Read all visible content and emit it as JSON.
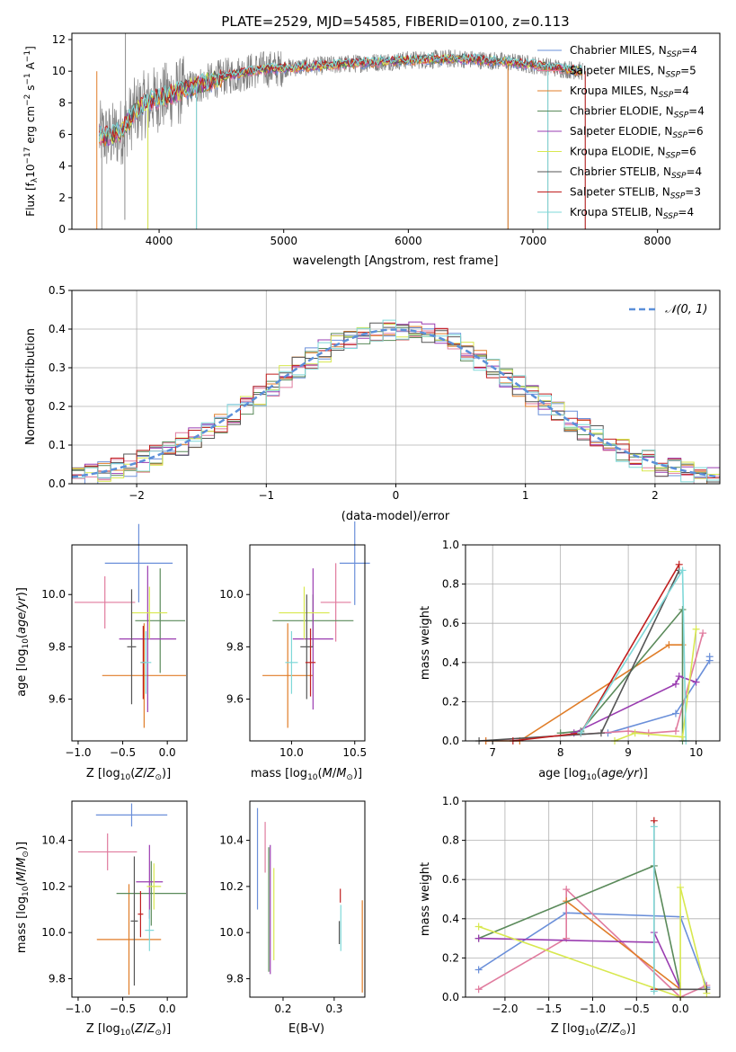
{
  "figure": {
    "title": "PLATE=2529, MJD=54585, FIBERID=0100, z=0.113"
  },
  "colors": {
    "Chabrier MILES": "#6a8fd9",
    "Salpeter MILES": "#e07b9e",
    "Kroupa MILES": "#e07d28",
    "Chabrier ELODIE": "#5a8a5a",
    "Salpeter ELODIE": "#9a3cb0",
    "Kroupa ELODIE": "#d8e84f",
    "Chabrier STELIB": "#555555",
    "Salpeter STELIB": "#c01f1f",
    "Kroupa STELIB": "#7fd8d8",
    "data": "#808080",
    "gaussian": "#5b8fd9"
  },
  "chart_data": [
    {
      "id": "spectrum",
      "type": "line",
      "title": "PLATE=2529, MJD=54585, FIBERID=0100, z=0.113",
      "xlabel": "wavelength [Angstrom, rest frame]",
      "ylabel": "Flux [f_λ10^-17 erg cm^-2 s^-1 A^-1]",
      "xlim": [
        3300,
        8500
      ],
      "ylim": [
        0,
        12.4
      ],
      "xticks": [
        4000,
        5000,
        6000,
        7000,
        8000
      ],
      "yticks": [
        0,
        2,
        4,
        6,
        8,
        10,
        12
      ],
      "legend_position": "right",
      "legend": [
        "Chabrier MILES, N_SSP=4",
        "Salpeter MILES, N_SSP=5",
        "Kroupa MILES, N_SSP=4",
        "Chabrier ELODIE, N_SSP=4",
        "Salpeter ELODIE, N_SSP=6",
        "Kroupa ELODIE, N_SSP=6",
        "Chabrier STELIB, N_SSP=4",
        "Salpeter STELIB, N_SSP=3",
        "Kroupa STELIB, N_SSP=4"
      ],
      "continuum": {
        "x": [
          3520,
          3600,
          3700,
          3800,
          3900,
          4000,
          4200,
          4500,
          4800,
          5200,
          5600,
          6000,
          6400,
          6800,
          7200,
          7400
        ],
        "y": [
          6.0,
          5.8,
          6.2,
          7.4,
          8.0,
          8.3,
          8.8,
          9.6,
          10.1,
          10.3,
          10.5,
          10.7,
          10.8,
          10.6,
          10.2,
          10.0
        ]
      },
      "spikes": [
        {
          "x": 3540,
          "y": 0.0
        },
        {
          "x": 3725,
          "y": 0.6
        },
        {
          "x": 3730,
          "y": 12.4
        },
        {
          "x": 3910,
          "y": 0.0
        },
        {
          "x": 4300,
          "y": 0.0
        },
        {
          "x": 6800,
          "y": 0.0
        },
        {
          "x": 7120,
          "y": 0.0
        },
        {
          "x": 7420,
          "y": 0.0
        }
      ]
    },
    {
      "id": "residuals",
      "type": "line",
      "xlabel": "(data-model)/error",
      "ylabel": "Normed distribution",
      "xlim": [
        -2.5,
        2.5
      ],
      "ylim": [
        0,
        0.5
      ],
      "xticks": [
        -2,
        -1,
        0,
        1,
        2
      ],
      "yticks": [
        0.0,
        0.1,
        0.2,
        0.3,
        0.4,
        0.5
      ],
      "legend": [
        "𝒩(0, 1)"
      ],
      "legend_position": "top-right",
      "grid": true
    },
    {
      "id": "age_vs_z",
      "type": "scatter",
      "xlabel": "Z [log10(Z/Z⊙)]",
      "ylabel": "age  [log10(age/yr)]",
      "xlim": [
        -1.07,
        0.22
      ],
      "ylim": [
        9.44,
        10.19
      ],
      "xticks": [
        -1.0,
        -0.5,
        0.0
      ],
      "xtick_labels": [
        "−1.0",
        "−0.5",
        "0.0"
      ],
      "yticks": [
        9.6,
        9.8,
        10.0
      ],
      "points": [
        {
          "model": "Chabrier MILES",
          "x": -0.32,
          "xerr": 0.38,
          "y": 10.12,
          "yerr": 0.15
        },
        {
          "model": "Salpeter MILES",
          "x": -0.7,
          "xerr": 0.34,
          "y": 9.97,
          "yerr": 0.1
        },
        {
          "model": "Kroupa MILES",
          "x": -0.26,
          "xerr": 0.47,
          "y": 9.69,
          "yerr": 0.2
        },
        {
          "model": "Chabrier ELODIE",
          "x": -0.08,
          "xerr": 0.28,
          "y": 9.9,
          "yerr": 0.2
        },
        {
          "model": "Salpeter ELODIE",
          "x": -0.22,
          "xerr": 0.32,
          "y": 9.83,
          "yerr": 0.28
        },
        {
          "model": "Kroupa ELODIE",
          "x": -0.2,
          "xerr": 0.2,
          "y": 9.93,
          "yerr": 0.1
        },
        {
          "model": "Chabrier STELIB",
          "x": -0.4,
          "xerr": 0.05,
          "y": 9.8,
          "yerr": 0.22
        },
        {
          "model": "Salpeter STELIB",
          "x": -0.27,
          "xerr": 0.03,
          "y": 9.74,
          "yerr": 0.14
        },
        {
          "model": "Kroupa STELIB",
          "x": -0.24,
          "xerr": 0.06,
          "y": 9.74,
          "yerr": 0.12
        }
      ]
    },
    {
      "id": "age_vs_mass",
      "type": "scatter",
      "xlabel": "mass [log10(M/M⊙)]",
      "xlim": [
        9.67,
        10.58
      ],
      "ylim": [
        9.44,
        10.19
      ],
      "xticks": [
        10.0,
        10.5
      ],
      "xtick_labels": [
        "10.0",
        "10.5"
      ],
      "yticks": [
        9.6,
        9.8,
        10.0
      ],
      "points": [
        {
          "model": "Chabrier MILES",
          "x": 10.5,
          "xerr": 0.12,
          "y": 10.12,
          "yerr": 0.16
        },
        {
          "model": "Salpeter MILES",
          "x": 10.35,
          "xerr": 0.12,
          "y": 9.97,
          "yerr": 0.15
        },
        {
          "model": "Kroupa MILES",
          "x": 9.97,
          "xerr": 0.2,
          "y": 9.69,
          "yerr": 0.2
        },
        {
          "model": "Chabrier ELODIE",
          "x": 10.17,
          "xerr": 0.32,
          "y": 9.9,
          "yerr": 0.1
        },
        {
          "model": "Salpeter ELODIE",
          "x": 10.17,
          "xerr": 0.16,
          "y": 9.83,
          "yerr": 0.27
        },
        {
          "model": "Kroupa ELODIE",
          "x": 10.1,
          "xerr": 0.2,
          "y": 9.93,
          "yerr": 0.1
        },
        {
          "model": "Chabrier STELIB",
          "x": 10.12,
          "xerr": 0.05,
          "y": 9.8,
          "yerr": 0.2
        },
        {
          "model": "Salpeter STELIB",
          "x": 10.15,
          "xerr": 0.04,
          "y": 9.74,
          "yerr": 0.13
        },
        {
          "model": "Kroupa STELIB",
          "x": 10.0,
          "xerr": 0.05,
          "y": 9.74,
          "yerr": 0.12
        }
      ]
    },
    {
      "id": "mass_weight_vs_age",
      "type": "line",
      "xlabel": "age  [log10(age/yr)]",
      "ylabel": "mass weight",
      "xlim": [
        6.6,
        10.35
      ],
      "ylim": [
        0,
        1.0
      ],
      "xticks": [
        7,
        8,
        9,
        10
      ],
      "yticks": [
        0.0,
        0.2,
        0.4,
        0.6,
        0.8,
        1.0
      ],
      "grid": true,
      "series": [
        {
          "model": "Chabrier MILES",
          "x": [
            8.7,
            9.7,
            10.2,
            10.2
          ],
          "y": [
            0.04,
            0.14,
            0.41,
            0.43
          ]
        },
        {
          "model": "Salpeter MILES",
          "x": [
            6.9,
            9.0,
            9.3,
            9.7,
            10.1
          ],
          "y": [
            0.0,
            0.05,
            0.04,
            0.05,
            0.55
          ]
        },
        {
          "model": "Kroupa MILES",
          "x": [
            6.9,
            7.4,
            9.6,
            9.8
          ],
          "y": [
            0.0,
            0.0,
            0.49,
            0.49
          ]
        },
        {
          "model": "Chabrier ELODIE",
          "x": [
            8.0,
            8.3,
            9.8,
            9.8
          ],
          "y": [
            0.04,
            0.05,
            0.67,
            0.0
          ]
        },
        {
          "model": "Salpeter ELODIE",
          "x": [
            8.2,
            9.7,
            9.75,
            10.0
          ],
          "y": [
            0.04,
            0.29,
            0.33,
            0.3
          ]
        },
        {
          "model": "Kroupa ELODIE",
          "x": [
            8.8,
            9.1,
            9.8,
            10.0
          ],
          "y": [
            0.0,
            0.04,
            0.02,
            0.57
          ]
        },
        {
          "model": "Chabrier STELIB",
          "x": [
            6.8,
            8.6,
            9.75
          ],
          "y": [
            0.0,
            0.04,
            0.87
          ]
        },
        {
          "model": "Salpeter STELIB",
          "x": [
            7.3,
            8.3,
            9.75
          ],
          "y": [
            0.0,
            0.04,
            0.9
          ]
        },
        {
          "model": "Kroupa STELIB",
          "x": [
            8.3,
            9.8,
            9.85
          ],
          "y": [
            0.04,
            0.87,
            0.0
          ]
        }
      ]
    },
    {
      "id": "mass_vs_z",
      "type": "scatter",
      "xlabel": "Z [log10(Z/Z⊙)]",
      "ylabel": "mass [log10(M/M⊙)]",
      "xlim": [
        -1.07,
        0.22
      ],
      "ylim": [
        9.72,
        10.57
      ],
      "xticks": [
        -1.0,
        -0.5,
        0.0
      ],
      "xtick_labels": [
        "−1.0",
        "−0.5",
        "0.0"
      ],
      "yticks": [
        9.8,
        10.0,
        10.2,
        10.4
      ],
      "points": [
        {
          "model": "Chabrier MILES",
          "x": -0.4,
          "xerr": 0.4,
          "y": 10.51,
          "yerr": 0.05
        },
        {
          "model": "Salpeter MILES",
          "x": -0.67,
          "xerr": 0.33,
          "y": 10.35,
          "yerr": 0.08
        },
        {
          "model": "Kroupa MILES",
          "x": -0.43,
          "xerr": 0.36,
          "y": 9.97,
          "yerr": 0.24
        },
        {
          "model": "Chabrier ELODIE",
          "x": -0.18,
          "xerr": 0.39,
          "y": 10.17,
          "yerr": 0.14
        },
        {
          "model": "Salpeter ELODIE",
          "x": -0.2,
          "xerr": 0.15,
          "y": 10.22,
          "yerr": 0.16
        },
        {
          "model": "Kroupa ELODIE",
          "x": -0.15,
          "xerr": 0.08,
          "y": 10.2,
          "yerr": 0.1
        },
        {
          "model": "Chabrier STELIB",
          "x": -0.37,
          "xerr": 0.04,
          "y": 10.05,
          "yerr": 0.28
        },
        {
          "model": "Salpeter STELIB",
          "x": -0.3,
          "xerr": 0.03,
          "y": 10.08,
          "yerr": 0.1
        },
        {
          "model": "Kroupa STELIB",
          "x": -0.2,
          "xerr": 0.05,
          "y": 10.01,
          "yerr": 0.09
        }
      ]
    },
    {
      "id": "mass_vs_ebv",
      "type": "scatter",
      "xlabel": "E(B-V)",
      "xlim": [
        0.135,
        0.36
      ],
      "ylim": [
        9.72,
        10.57
      ],
      "xticks": [
        0.2,
        0.3
      ],
      "xtick_labels": [
        "0.2",
        "0.3"
      ],
      "yticks": [
        9.8,
        10.0,
        10.2,
        10.4
      ],
      "points": [
        {
          "model": "Chabrier MILES",
          "x": 0.15,
          "y": 10.32,
          "yerr": 0.22
        },
        {
          "model": "Salpeter MILES",
          "x": 0.165,
          "y": 10.37,
          "yerr": 0.11
        },
        {
          "model": "Kroupa MILES",
          "x": 0.355,
          "y": 9.94,
          "yerr": 0.2
        },
        {
          "model": "Chabrier ELODIE",
          "x": 0.172,
          "y": 10.1,
          "yerr": 0.27
        },
        {
          "model": "Salpeter ELODIE",
          "x": 0.175,
          "y": 10.1,
          "yerr": 0.28
        },
        {
          "model": "Kroupa ELODIE",
          "x": 0.182,
          "y": 10.08,
          "yerr": 0.2
        },
        {
          "model": "Chabrier STELIB",
          "x": 0.31,
          "y": 10.0,
          "yerr": 0.05
        },
        {
          "model": "Salpeter STELIB",
          "x": 0.312,
          "y": 10.16,
          "yerr": 0.03
        },
        {
          "model": "Kroupa STELIB",
          "x": 0.313,
          "y": 10.02,
          "yerr": 0.1
        }
      ]
    },
    {
      "id": "mass_weight_vs_z",
      "type": "line",
      "xlabel": "Z [log10(Z/Z⊙)]",
      "ylabel": "mass weight",
      "xlim": [
        -2.45,
        0.45
      ],
      "ylim": [
        0,
        1.0
      ],
      "xticks": [
        -2.0,
        -1.5,
        -1.0,
        -0.5,
        0.0
      ],
      "xtick_labels": [
        "−2.0",
        "−1.5",
        "−1.0",
        "−0.5",
        "0.0"
      ],
      "yticks": [
        0.0,
        0.2,
        0.4,
        0.6,
        0.8,
        1.0
      ],
      "grid": true,
      "series": [
        {
          "model": "Chabrier MILES",
          "x": [
            -2.3,
            -1.3,
            0.0,
            0.3
          ],
          "y": [
            0.14,
            0.43,
            0.41,
            0.05
          ]
        },
        {
          "model": "Salpeter MILES",
          "x": [
            -2.3,
            -1.3,
            -1.3,
            0.0,
            0.3
          ],
          "y": [
            0.04,
            0.3,
            0.55,
            0.0,
            0.06
          ]
        },
        {
          "model": "Kroupa MILES",
          "x": [
            -1.3,
            0.0
          ],
          "y": [
            0.49,
            0.04
          ]
        },
        {
          "model": "Chabrier ELODIE",
          "x": [
            -2.3,
            -0.3,
            0.0
          ],
          "y": [
            0.3,
            0.67,
            0.04
          ]
        },
        {
          "model": "Salpeter ELODIE",
          "x": [
            -2.3,
            -0.3,
            -0.3,
            0.0
          ],
          "y": [
            0.3,
            0.28,
            0.33,
            0.04
          ]
        },
        {
          "model": "Kroupa ELODIE",
          "x": [
            -2.3,
            0.0,
            0.0,
            0.3
          ],
          "y": [
            0.36,
            0.0,
            0.56,
            0.02
          ]
        },
        {
          "model": "Chabrier STELIB",
          "x": [
            -0.3,
            0.3
          ],
          "y": [
            0.04,
            0.04
          ]
        },
        {
          "model": "Salpeter STELIB",
          "x": [
            -0.3,
            -0.3
          ],
          "y": [
            0.04,
            0.9
          ]
        },
        {
          "model": "Kroupa STELIB",
          "x": [
            -0.3,
            -0.3
          ],
          "y": [
            0.03,
            0.87
          ]
        }
      ]
    }
  ]
}
